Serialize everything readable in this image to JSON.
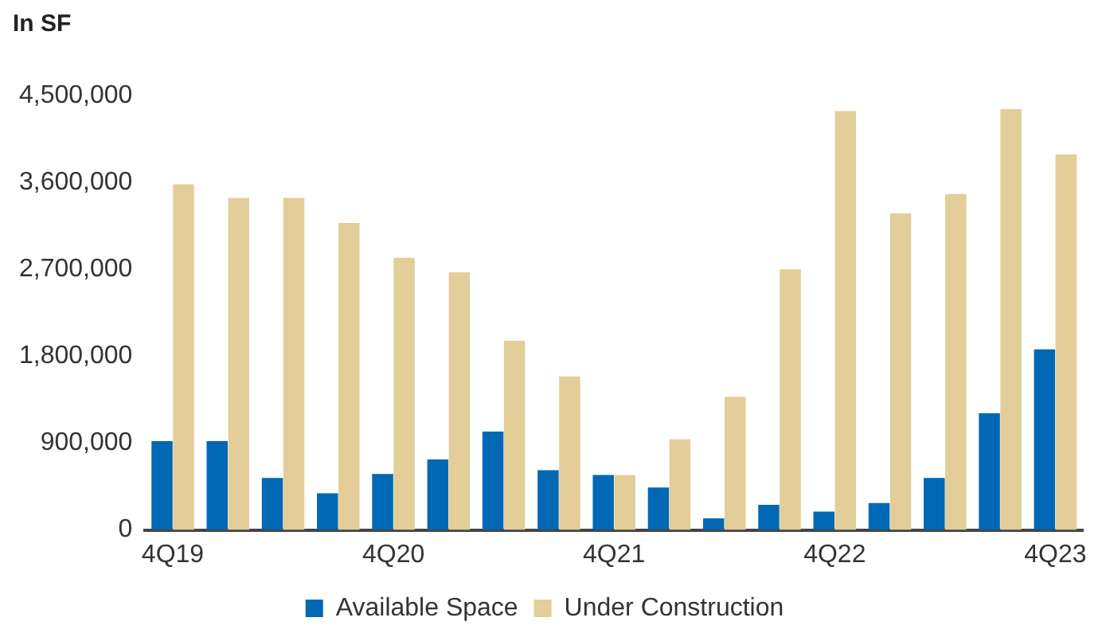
{
  "chart_data": {
    "type": "bar",
    "ylabel": "In SF",
    "categories": [
      "4Q19",
      null,
      null,
      null,
      "4Q20",
      null,
      null,
      null,
      "4Q21",
      null,
      null,
      null,
      "4Q22",
      null,
      null,
      null,
      "4Q23"
    ],
    "series": [
      {
        "name": "Available Space",
        "color": "#0068b4",
        "values": [
          920000,
          920000,
          540000,
          380000,
          580000,
          730000,
          1020000,
          620000,
          570000,
          440000,
          120000,
          260000,
          190000,
          280000,
          540000,
          1210000,
          1870000
        ]
      },
      {
        "name": "Under Construction",
        "color": "#e3cd98",
        "values": [
          3580000,
          3440000,
          3440000,
          3180000,
          2820000,
          2670000,
          1960000,
          1590000,
          570000,
          940000,
          1380000,
          2700000,
          4340000,
          3280000,
          3480000,
          4360000,
          3890000
        ]
      }
    ],
    "ylim": [
      0,
      4500000
    ],
    "yticks": [
      0,
      {
        "value": 900000,
        "label": "900,000"
      },
      {
        "value": 1800000,
        "label": "1,800,000"
      },
      {
        "value": 2700000,
        "label": "2,700,000"
      },
      {
        "value": 3600000,
        "label": "3,600,000"
      },
      {
        "value": 4500000,
        "label": "4,500,000"
      }
    ],
    "grid": false,
    "legend": "bottom"
  }
}
